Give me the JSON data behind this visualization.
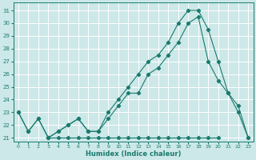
{
  "xlabel": "Humidex (Indice chaleur)",
  "bg_color": "#cce8e8",
  "grid_color": "#ffffff",
  "line_color": "#1a7a6e",
  "xlim": [
    -0.5,
    23.5
  ],
  "ylim": [
    20.7,
    31.6
  ],
  "xticks": [
    0,
    1,
    2,
    3,
    4,
    5,
    6,
    7,
    8,
    9,
    10,
    11,
    12,
    13,
    14,
    15,
    16,
    17,
    18,
    19,
    20,
    21,
    22,
    23
  ],
  "yticks": [
    21,
    22,
    23,
    24,
    25,
    26,
    27,
    28,
    29,
    30,
    31
  ],
  "series_flat_x": [
    3,
    4,
    5,
    6,
    7,
    8,
    9,
    10,
    11,
    12,
    13,
    14,
    15,
    16,
    17,
    18,
    19,
    20
  ],
  "series_flat_y": [
    21.0,
    21.0,
    21.0,
    21.0,
    21.0,
    21.0,
    21.0,
    21.0,
    21.0,
    21.0,
    21.0,
    21.0,
    21.0,
    21.0,
    21.0,
    21.0,
    21.0,
    21.0
  ],
  "series_mid_x": [
    0,
    1,
    2,
    3,
    4,
    5,
    6,
    7,
    8,
    9,
    10,
    11,
    12,
    13,
    14,
    15,
    16,
    17,
    18,
    19,
    20,
    21,
    22,
    23
  ],
  "series_mid_y": [
    23.0,
    21.5,
    22.5,
    21.0,
    21.5,
    22.0,
    22.5,
    21.5,
    21.5,
    22.5,
    23.5,
    24.5,
    24.5,
    26.0,
    26.5,
    27.5,
    28.5,
    30.0,
    30.5,
    27.0,
    25.5,
    24.5,
    23.0,
    21.0
  ],
  "series_top_x": [
    0,
    1,
    2,
    3,
    4,
    5,
    6,
    7,
    8,
    9,
    10,
    11,
    12,
    13,
    14,
    15,
    16,
    17,
    18,
    19,
    20,
    21,
    22,
    23
  ],
  "series_top_y": [
    23.0,
    21.5,
    22.5,
    21.0,
    21.5,
    22.0,
    22.5,
    21.5,
    21.5,
    23.0,
    24.0,
    25.0,
    26.0,
    27.0,
    27.5,
    28.5,
    30.0,
    31.0,
    31.0,
    29.5,
    27.0,
    24.5,
    23.5,
    21.0
  ]
}
